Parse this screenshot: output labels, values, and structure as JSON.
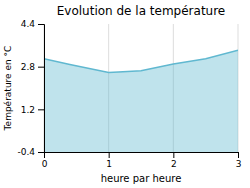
{
  "chart_data": {
    "type": "area",
    "title": "Evolution de la température",
    "x_label": "heure par heure",
    "y_label": "Température en °C",
    "x": [
      0,
      0.4,
      1.0,
      1.15,
      1.5,
      2.0,
      2.5,
      3.0
    ],
    "values": [
      3.1,
      2.88,
      2.58,
      2.6,
      2.65,
      2.9,
      3.1,
      3.42
    ],
    "color": "#60b8d0",
    "xlim": [
      0,
      3
    ],
    "ylim": [
      -0.4,
      4.4
    ],
    "xticks": [
      0,
      1,
      2,
      3
    ],
    "yticks": [
      -0.4,
      1.2,
      2.8,
      4.4
    ],
    "grid": "x"
  }
}
